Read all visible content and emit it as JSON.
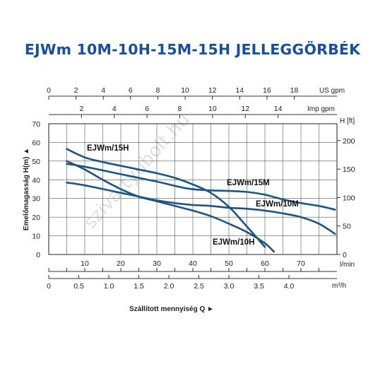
{
  "title": "EJWm 10M-10H-15M-15H JELLEGGÖRBÉK",
  "watermark": "szivattyubolt.hu",
  "chart_data": {
    "type": "line",
    "title": "EJWm 10M-10H-15M-15H JELLEGGÖRBÉK",
    "xlabel": "Szállított mennyiség Q",
    "ylabel": "Emelőmagasság H(m)",
    "y2label": "H [ft]",
    "x_unit": "l/min",
    "xlim": [
      0,
      80
    ],
    "ylim": [
      0,
      70
    ],
    "x_ticks": [
      "10",
      "20",
      "30",
      "40",
      "50",
      "60",
      "70"
    ],
    "y_ticks": [
      "0",
      "10",
      "20",
      "30",
      "40",
      "50",
      "60",
      "70"
    ],
    "y2_ticks": [
      "0",
      "50",
      "100",
      "150",
      "200"
    ],
    "us_gpm_axis": {
      "label": "US gpm",
      "ticks": [
        "0",
        "2",
        "4",
        "6",
        "8",
        "10",
        "12",
        "14",
        "16",
        "18"
      ]
    },
    "imp_gpm_axis": {
      "label": "Imp gpm",
      "ticks": [
        "2",
        "4",
        "6",
        "8",
        "10",
        "12",
        "14"
      ]
    },
    "m3h_axis": {
      "label": "m³/h",
      "ticks": [
        "0",
        "0.5",
        "1.0",
        "1.5",
        "2.0",
        "2.5",
        "3.0",
        "3.5",
        "4.0"
      ]
    },
    "series": [
      {
        "name": "EJWm/15H",
        "x": [
          5,
          10,
          15,
          20,
          25,
          30,
          35,
          40,
          45,
          50,
          55,
          60
        ],
        "y": [
          56.5,
          52,
          49.5,
          47.5,
          45.5,
          43.5,
          41,
          37.5,
          33,
          25.5,
          15,
          4
        ]
      },
      {
        "name": "EJWm/15M",
        "x": [
          5,
          10,
          20,
          30,
          38,
          43,
          50,
          55,
          60,
          65,
          70,
          75,
          79.5
        ],
        "y": [
          48.5,
          47,
          43,
          39,
          35.5,
          34.5,
          34,
          33.5,
          32,
          29.5,
          27.5,
          26,
          24
        ]
      },
      {
        "name": "EJWm/10M",
        "x": [
          5,
          10,
          20,
          25,
          30,
          35,
          40,
          45,
          50,
          55,
          60,
          65,
          70,
          75,
          79.5
        ],
        "y": [
          38.5,
          37,
          33,
          31,
          29,
          27.5,
          26.5,
          26,
          25,
          24.5,
          23.5,
          22,
          20,
          16.5,
          11
        ]
      },
      {
        "name": "EJWm/10H",
        "x": [
          5,
          10,
          15,
          20,
          25,
          30,
          35,
          40,
          45,
          50,
          55,
          60,
          62.5
        ],
        "y": [
          50,
          45.5,
          40,
          35,
          31,
          28.5,
          26,
          23.5,
          20.5,
          16.5,
          12,
          6,
          1.5
        ]
      }
    ]
  }
}
